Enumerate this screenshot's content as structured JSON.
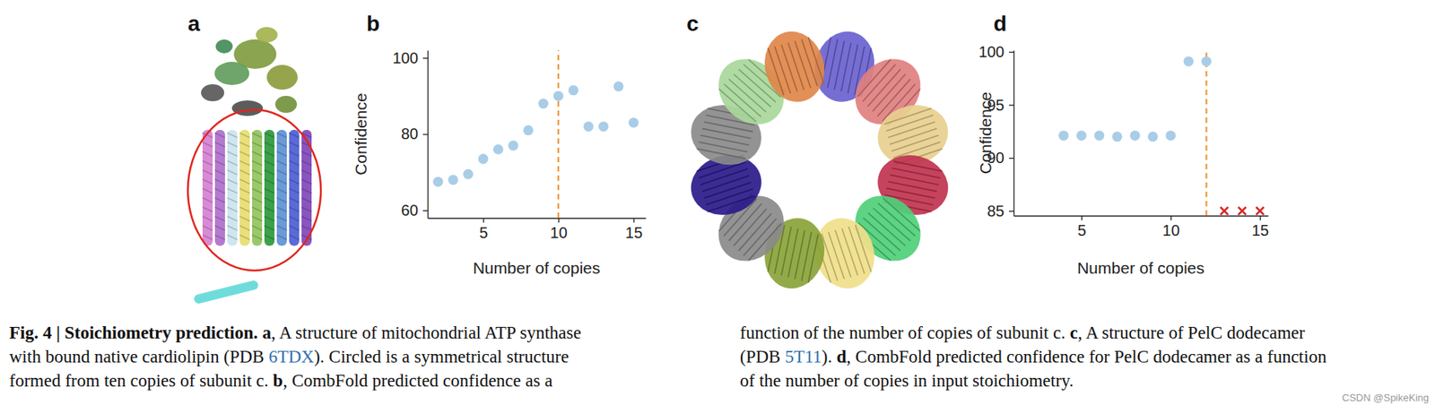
{
  "panels": [
    "a",
    "b",
    "c",
    "d"
  ],
  "chart_data": [
    {
      "type": "scatter",
      "xlabel": "Number of copies",
      "ylabel": "Confidence",
      "xlim": [
        1.3,
        15.8
      ],
      "xticks": [
        5,
        10,
        15
      ],
      "ylim": [
        58,
        102
      ],
      "yticks": [
        60,
        80,
        100
      ],
      "vline": {
        "value": 10,
        "color": "#f0973a",
        "line_style": "dashed"
      },
      "series": [
        {
          "color": "#a9cde7",
          "marker": "circle",
          "x": [
            2,
            3,
            4,
            5,
            6,
            7,
            8,
            9,
            10,
            11,
            12,
            13,
            14,
            15
          ],
          "values": [
            67.5,
            68,
            69.5,
            73.5,
            76,
            77,
            81,
            88,
            90,
            91.5,
            82,
            82,
            92.5,
            83
          ]
        }
      ]
    },
    {
      "type": "scatter",
      "xlabel": "Number of copies",
      "ylabel": "Confidence",
      "xlim": [
        1.2,
        15.45
      ],
      "xticks": [
        5,
        10,
        15
      ],
      "ylim": [
        84.55,
        100.15
      ],
      "yticks": [
        85,
        90,
        95,
        100
      ],
      "vline": {
        "value": 12,
        "color": "#f0973a",
        "line_style": "dashed"
      },
      "series": [
        {
          "color": "#a9cde7",
          "marker": "circle",
          "x": [
            4,
            5,
            6,
            7,
            8,
            9,
            10,
            11,
            12
          ],
          "values": [
            92.1,
            92.1,
            92.1,
            92,
            92.1,
            92,
            92.1,
            99.1,
            99.1
          ]
        },
        {
          "color": "#d62728",
          "marker": "x",
          "x": [
            13,
            14,
            15
          ],
          "values": [
            85,
            85,
            85
          ]
        }
      ]
    }
  ],
  "caption": {
    "left": [
      [
        {
          "text": "Fig. 4 | Stoichiometry prediction. ",
          "style": "bold"
        },
        {
          "text": "a",
          "style": "bold"
        },
        {
          "text": ", A structure of mitochondrial ATP synthase",
          "style": "normal"
        }
      ],
      [
        {
          "text": "with bound native cardiolipin (PDB ",
          "style": "normal"
        },
        {
          "text": "6TDX",
          "style": "link"
        },
        {
          "text": "). Circled is a symmetrical structure",
          "style": "normal"
        }
      ],
      [
        {
          "text": "formed from ten copies of subunit c. ",
          "style": "normal"
        },
        {
          "text": "b",
          "style": "bold"
        },
        {
          "text": ", CombFold predicted confidence as a",
          "style": "normal"
        }
      ]
    ],
    "right": [
      [
        {
          "text": "function of the number of copies of subunit c. ",
          "style": "normal"
        },
        {
          "text": "c",
          "style": "bold"
        },
        {
          "text": ", A structure of PelC dodecamer",
          "style": "normal"
        }
      ],
      [
        {
          "text": "(PDB ",
          "style": "normal"
        },
        {
          "text": "5T11",
          "style": "link"
        },
        {
          "text": "). ",
          "style": "normal"
        },
        {
          "text": "d",
          "style": "bold"
        },
        {
          "text": ", CombFold predicted confidence for PelC dodecamer as a function",
          "style": "normal"
        }
      ],
      [
        {
          "text": "of the number of copies in input stoichiometry.",
          "style": "normal"
        }
      ]
    ]
  },
  "watermark": "CSDN @SpikeKing"
}
